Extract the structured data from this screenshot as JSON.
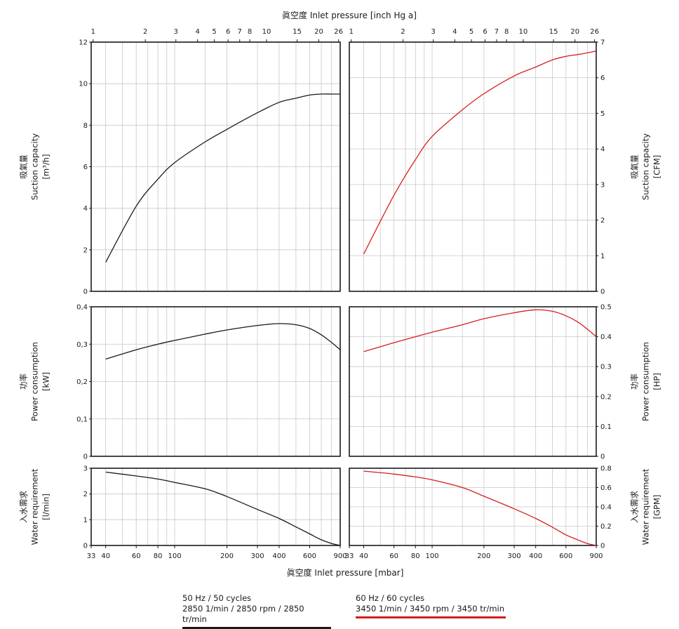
{
  "top_title": "眞空度  Inlet pressure [inch Hg a]",
  "bottom_title": "眞空度  Inlet pressure [mbar]",
  "left_labels": {
    "capacity": [
      "吸氣量",
      "Suction capacity",
      "[m³/h]"
    ],
    "power": [
      "功率",
      "Power consumption",
      "[kW]"
    ],
    "water": [
      "入水需求",
      "Water requirement",
      "[l/min]"
    ]
  },
  "right_labels": {
    "capacity": [
      "吸氣量",
      "Suction capacity",
      "[CFM]"
    ],
    "power": [
      "功率",
      "Power consumption",
      "[HP]"
    ],
    "water": [
      "入水需求",
      "Water requirement",
      "[GPM]"
    ]
  },
  "legend": {
    "hz50_line1": "50 Hz / 50 cycles",
    "hz50_line2": "2850 1/min / 2850 rpm / 2850 tr/min",
    "hz60_line1": "60 Hz / 60 cycles",
    "hz60_line2": "3450 1/min / 3450 rpm / 3450 tr/min"
  },
  "colors": {
    "hz50": "#1a1a1a",
    "hz60": "#d42020",
    "grid": "#c8c8c8"
  },
  "chart_data": [
    {
      "type": "line",
      "panel": "50 Hz suction capacity",
      "x_scale": "log",
      "xlim": [
        33,
        900
      ],
      "ylim": [
        0,
        12
      ],
      "yticks": [
        "0",
        "2",
        "4",
        "6",
        "8",
        "10",
        "12"
      ],
      "x": [
        40,
        60,
        80,
        100,
        150,
        200,
        300,
        400,
        500,
        600,
        700,
        800,
        900
      ],
      "y": [
        1.4,
        4.1,
        5.4,
        6.2,
        7.2,
        7.8,
        8.6,
        9.1,
        9.3,
        9.45,
        9.5,
        9.5,
        9.5
      ]
    },
    {
      "type": "line",
      "panel": "60 Hz suction capacity",
      "x_scale": "log",
      "xlim": [
        33,
        900
      ],
      "ylim": [
        0,
        7
      ],
      "yticks": [
        "0",
        "1",
        "2",
        "3",
        "4",
        "5",
        "6",
        "7"
      ],
      "x": [
        40,
        60,
        80,
        100,
        150,
        200,
        300,
        400,
        500,
        600,
        700,
        800,
        900
      ],
      "y": [
        1.05,
        2.7,
        3.7,
        4.35,
        5.1,
        5.55,
        6.05,
        6.3,
        6.5,
        6.6,
        6.65,
        6.7,
        6.75
      ]
    },
    {
      "type": "line",
      "panel": "50 Hz power consumption",
      "x_scale": "log",
      "xlim": [
        33,
        900
      ],
      "ylim": [
        0,
        0.4
      ],
      "yticks": [
        "0",
        "0,1",
        "0,2",
        "0,3",
        "0,4"
      ],
      "x": [
        40,
        60,
        80,
        100,
        150,
        200,
        300,
        400,
        500,
        600,
        700,
        800,
        900
      ],
      "y": [
        0.26,
        0.285,
        0.3,
        0.31,
        0.327,
        0.338,
        0.35,
        0.355,
        0.352,
        0.342,
        0.325,
        0.305,
        0.285
      ]
    },
    {
      "type": "line",
      "panel": "60 Hz power consumption",
      "x_scale": "log",
      "xlim": [
        33,
        900
      ],
      "ylim": [
        0,
        0.5
      ],
      "yticks": [
        "0",
        "0.1",
        "0.2",
        "0.3",
        "0.4",
        "0.5"
      ],
      "x": [
        40,
        60,
        80,
        100,
        150,
        200,
        300,
        400,
        500,
        600,
        700,
        800,
        900
      ],
      "y": [
        0.35,
        0.38,
        0.4,
        0.415,
        0.44,
        0.46,
        0.48,
        0.49,
        0.485,
        0.47,
        0.45,
        0.425,
        0.4
      ]
    },
    {
      "type": "line",
      "panel": "50 Hz water requirement",
      "x_scale": "log",
      "xlim": [
        33,
        900
      ],
      "ylim": [
        0,
        3
      ],
      "yticks": [
        "0",
        "1",
        "2",
        "3"
      ],
      "x": [
        40,
        60,
        80,
        100,
        150,
        200,
        300,
        400,
        500,
        600,
        700,
        800,
        900
      ],
      "y": [
        2.85,
        2.7,
        2.58,
        2.45,
        2.2,
        1.9,
        1.4,
        1.05,
        0.72,
        0.45,
        0.22,
        0.08,
        0.0
      ]
    },
    {
      "type": "line",
      "panel": "60 Hz water requirement",
      "x_scale": "log",
      "xlim": [
        33,
        900
      ],
      "ylim": [
        0,
        0.8
      ],
      "yticks": [
        "0",
        "0.2",
        "0.4",
        "0.6",
        "0.8"
      ],
      "x": [
        40,
        60,
        80,
        100,
        150,
        200,
        300,
        400,
        500,
        600,
        700,
        800,
        900
      ],
      "y": [
        0.77,
        0.74,
        0.71,
        0.68,
        0.6,
        0.51,
        0.38,
        0.28,
        0.19,
        0.11,
        0.06,
        0.02,
        0.0
      ]
    }
  ],
  "x_bottom_ticks": [
    "33",
    "40",
    "60",
    "80",
    "100",
    "200",
    "300",
    "400",
    "600",
    "900"
  ],
  "x_bottom_tick_values": [
    33,
    40,
    60,
    80,
    100,
    200,
    300,
    400,
    600,
    900
  ],
  "x_top_ticks": [
    "1",
    "2",
    "3",
    "4",
    "5",
    "6",
    "7",
    "8",
    "10",
    "15",
    "20",
    "26"
  ],
  "x_top_tick_values": [
    1,
    2,
    3,
    4,
    5,
    6,
    7,
    8,
    10,
    15,
    20,
    26
  ]
}
